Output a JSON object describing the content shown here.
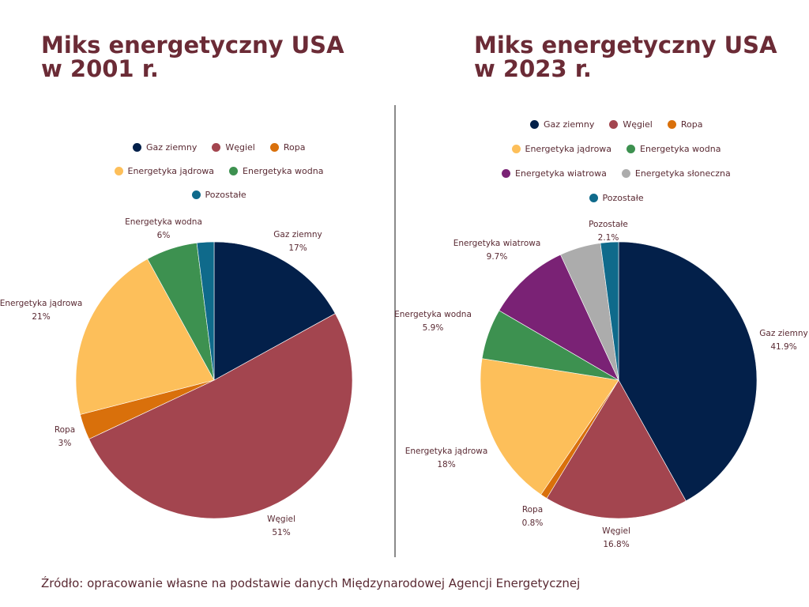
{
  "chart_data": [
    {
      "type": "pie",
      "title": "Miks energetyczny USA w 2001 r.",
      "title_lines": [
        "Miks energetyczny USA",
        "w 2001 r."
      ],
      "start": "top",
      "direction": "clockwise",
      "legend_placement": "top",
      "slices": [
        {
          "key": "gaz",
          "label": "Gaz ziemny",
          "value": 17,
          "display": "17%",
          "color": "#03204a",
          "show_label": true
        },
        {
          "key": "wegiel",
          "label": "Węgiel",
          "value": 51,
          "display": "51%",
          "color": "#a3454f",
          "show_label": true
        },
        {
          "key": "ropa",
          "label": "Ropa",
          "value": 3,
          "display": "3%",
          "color": "#d9700b",
          "show_label": true
        },
        {
          "key": "jadrowa",
          "label": "Energetyka jądrowa",
          "value": 21,
          "display": "21%",
          "color": "#fdbf5a",
          "show_label": true
        },
        {
          "key": "wodna",
          "label": "Energetyka wodna",
          "value": 6,
          "display": "6%",
          "color": "#3d9150",
          "show_label": true
        },
        {
          "key": "pozostale",
          "label": "Pozostałe",
          "value": 2,
          "display": "",
          "color": "#0f6a8b",
          "show_label": false
        }
      ],
      "legend_rows": [
        [
          "Gaz ziemny",
          "Węgiel",
          "Ropa"
        ],
        [
          "Energetyka jądrowa",
          "Energetyka wodna"
        ],
        [
          "Pozostałe"
        ]
      ]
    },
    {
      "type": "pie",
      "title": "Miks energetyczny USA w 2023 r.",
      "title_lines": [
        "Miks energetyczny USA",
        "w 2023 r."
      ],
      "start": "top",
      "direction": "clockwise",
      "legend_placement": "top",
      "slices": [
        {
          "key": "gaz",
          "label": "Gaz ziemny",
          "value": 41.9,
          "display": "41.9%",
          "color": "#03204a",
          "show_label": true
        },
        {
          "key": "wegiel",
          "label": "Węgiel",
          "value": 16.8,
          "display": "16.8%",
          "color": "#a3454f",
          "show_label": true
        },
        {
          "key": "ropa",
          "label": "Ropa",
          "value": 0.8,
          "display": "0.8%",
          "color": "#d9700b",
          "show_label": true
        },
        {
          "key": "jadrowa",
          "label": "Energetyka jądrowa",
          "value": 18,
          "display": "18%",
          "color": "#fdbf5a",
          "show_label": true
        },
        {
          "key": "wodna",
          "label": "Energetyka wodna",
          "value": 5.9,
          "display": "5.9%",
          "color": "#3d9150",
          "show_label": true
        },
        {
          "key": "wiatrowa",
          "label": "Energetyka wiatrowa",
          "value": 9.7,
          "display": "9.7%",
          "color": "#7a2275",
          "show_label": true
        },
        {
          "key": "sloneczna",
          "label": "Energetyka słoneczna",
          "value": 4.8,
          "display": "",
          "color": "#acacac",
          "show_label": false
        },
        {
          "key": "pozostale",
          "label": "Pozostałe",
          "value": 2.1,
          "display": "2.1%",
          "color": "#0f6a8b",
          "show_label": true
        }
      ],
      "legend_rows": [
        [
          "Gaz ziemny",
          "Węgiel",
          "Ropa"
        ],
        [
          "Energetyka jądrowa",
          "Energetyka wodna"
        ],
        [
          "Energetyka wiatrowa",
          "Energetyka słoneczna"
        ],
        [
          "Pozostałe"
        ]
      ]
    }
  ],
  "source": "Źródło: opracowanie własne na podstawie danych Międzynarodowej Agencji Energetycznej"
}
